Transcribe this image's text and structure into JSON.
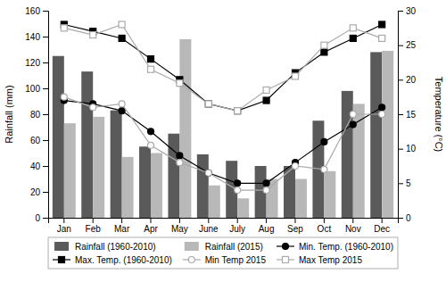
{
  "chart_data": {
    "type": "bar",
    "categories": [
      "Jan",
      "Feb",
      "Mar",
      "Apr",
      "May",
      "June",
      "July",
      "Aug",
      "Sep",
      "Oct",
      "Nov",
      "Dec"
    ],
    "ylabel": "Rainfall (mm)",
    "y2label": "Temperature (°C)",
    "ylim": [
      0,
      160
    ],
    "yticks": [
      0,
      20,
      40,
      60,
      80,
      100,
      120,
      140,
      160
    ],
    "y2lim": [
      0,
      30
    ],
    "y2ticks": [
      0,
      5,
      10,
      15,
      20,
      25,
      30
    ],
    "legend": "bottom",
    "series": [
      {
        "name": "Rainfall (1960-2010)",
        "type": "bar",
        "color": "#5a5a5a",
        "values": [
          125,
          113,
          83,
          55,
          65,
          49,
          44,
          40,
          40,
          75,
          98,
          128
        ]
      },
      {
        "name": "Rainfall (2015)",
        "type": "bar",
        "color": "#b8b8b8",
        "values": [
          73,
          78,
          47,
          50,
          138,
          25,
          15,
          30,
          30,
          36,
          88,
          129
        ]
      },
      {
        "name": "Min. Temp. (1960-2010)",
        "type": "line",
        "axis": "y2",
        "color": "#000000",
        "marker": "circle",
        "values": [
          17,
          16.5,
          15.5,
          12.5,
          9,
          6.5,
          5,
          5,
          8,
          11,
          13.5,
          16
        ]
      },
      {
        "name": "Max. Temp. (1960-2010)",
        "type": "line",
        "axis": "y2",
        "color": "#000000",
        "marker": "square",
        "values": [
          28,
          27,
          26,
          23,
          20,
          16.5,
          15.5,
          17,
          21,
          24,
          26,
          28
        ]
      },
      {
        "name": "Min Temp 2015",
        "type": "line",
        "axis": "y2",
        "color": "#aaaaaa",
        "marker": "circle-open",
        "values": [
          17.5,
          16,
          16.5,
          10.5,
          8,
          6.5,
          4,
          4,
          7.5,
          7,
          15,
          15
        ]
      },
      {
        "name": "Max Temp 2015",
        "type": "line",
        "axis": "y2",
        "color": "#aaaaaa",
        "marker": "square-open",
        "values": [
          27.5,
          26.5,
          28,
          21.5,
          19.5,
          16.5,
          15.5,
          18.5,
          20.5,
          25,
          27.5,
          26
        ]
      }
    ]
  }
}
